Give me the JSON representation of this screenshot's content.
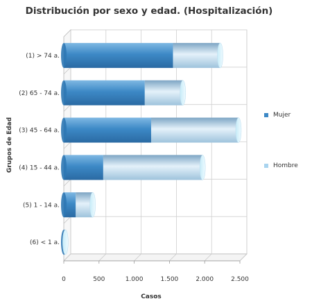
{
  "chart_data": {
    "type": "bar",
    "orientation": "horizontal",
    "stacked": true,
    "style": "3d-cylinder",
    "title": "Distribución por sexo y edad. (Hospitalización)",
    "xlabel": "Casos",
    "ylabel": "Grupos de Edad",
    "xlim": [
      0,
      2500
    ],
    "xticks": [
      0,
      500,
      1000,
      1500,
      2000,
      2500
    ],
    "xtick_labels": [
      "0",
      "500",
      "1.000",
      "1.500",
      "2.000",
      "2.500"
    ],
    "grid": true,
    "legend_position": "right",
    "categories": [
      "(1) > 74 a.",
      "(2) 65 - 74 a.",
      "(3) 45 - 64 a.",
      "(4) 15 - 44 a.",
      "(5) 1 - 14 a.",
      "(6) < 1 a."
    ],
    "series": [
      {
        "name": "Mujer",
        "values": [
          1550,
          1150,
          1240,
          560,
          170,
          8
        ],
        "color": "#3d89c6"
      },
      {
        "name": "Hombre",
        "values": [
          670,
          540,
          1240,
          1410,
          240,
          15
        ],
        "color": "#a9d4ef"
      }
    ]
  }
}
